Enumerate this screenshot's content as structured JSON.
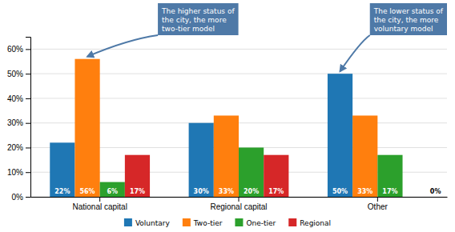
{
  "chart_data": {
    "type": "bar",
    "categories": [
      "National capital",
      "Regional capital",
      "Other"
    ],
    "series": [
      {
        "name": "Voluntary",
        "values": [
          22,
          30,
          50
        ],
        "value_labels": [
          "22%",
          "30%",
          "50%"
        ]
      },
      {
        "name": "Two-tier",
        "values": [
          56,
          33,
          33
        ],
        "value_labels": [
          "56%",
          "33%",
          "33%"
        ]
      },
      {
        "name": "One-tier",
        "values": [
          6,
          20,
          17
        ],
        "value_labels": [
          "6%",
          "20%",
          "17%"
        ]
      },
      {
        "name": "Regional",
        "values": [
          17,
          17,
          0
        ],
        "value_labels": [
          "17%",
          "17%",
          "0%"
        ]
      }
    ],
    "ylim": [
      0,
      65
    ],
    "yticks": [
      {
        "value": 0,
        "label": "0%"
      },
      {
        "value": 10,
        "label": "10%"
      },
      {
        "value": 20,
        "label": "20%"
      },
      {
        "value": 30,
        "label": "30%"
      },
      {
        "value": 40,
        "label": "40%"
      },
      {
        "value": 50,
        "label": "50%"
      },
      {
        "value": 60,
        "label": "60%"
      }
    ],
    "grid": true,
    "legend": "bottom",
    "data_labels": true,
    "annotations": [
      "The higher status of\nthe city, the more\ntwo-tier model",
      "The lower status of\nthe city, the more\nvoluntary model"
    ]
  }
}
